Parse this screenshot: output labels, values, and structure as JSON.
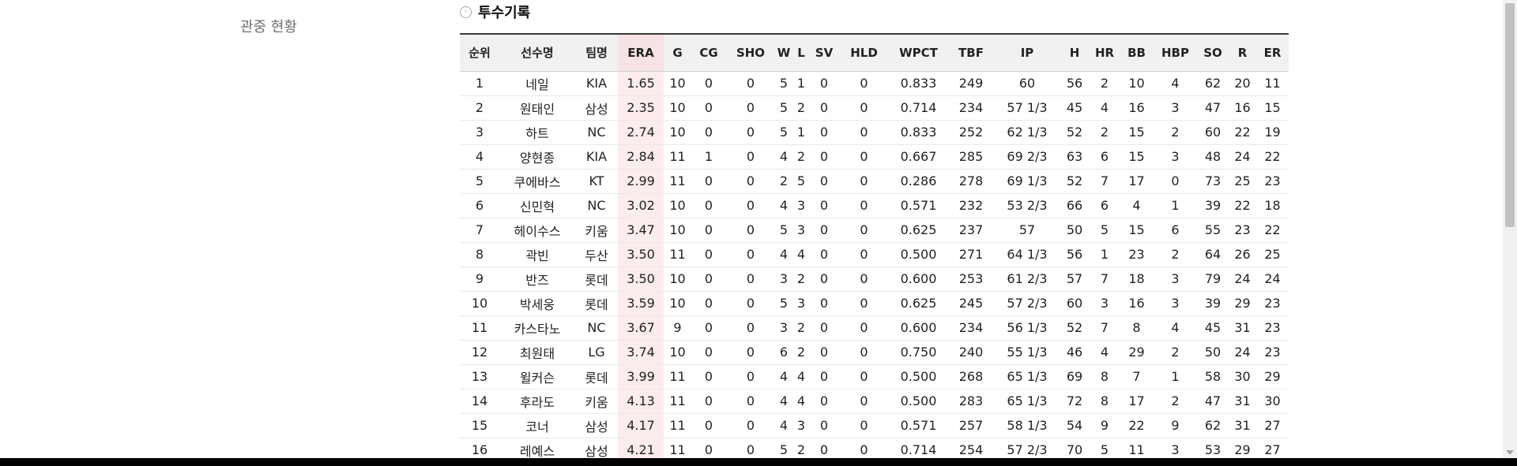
{
  "side_menu": {
    "attendance_label": "관중 현황"
  },
  "section": {
    "title": "투수기록",
    "icon": "circle-arrow-icon"
  },
  "table": {
    "headers": [
      "순위",
      "선수명",
      "팀명",
      "ERA",
      "G",
      "CG",
      "SHO",
      "W",
      "L",
      "SV",
      "HLD",
      "WPCT",
      "TBF",
      "IP",
      "H",
      "HR",
      "BB",
      "HBP",
      "SO",
      "R",
      "ER"
    ],
    "rows": [
      [
        "1",
        "네일",
        "KIA",
        "1.65",
        "10",
        "0",
        "0",
        "5",
        "1",
        "0",
        "0",
        "0.833",
        "249",
        "60",
        "56",
        "2",
        "10",
        "4",
        "62",
        "20",
        "11"
      ],
      [
        "2",
        "원태인",
        "삼성",
        "2.35",
        "10",
        "0",
        "0",
        "5",
        "2",
        "0",
        "0",
        "0.714",
        "234",
        "57 1/3",
        "45",
        "4",
        "16",
        "3",
        "47",
        "16",
        "15"
      ],
      [
        "3",
        "하트",
        "NC",
        "2.74",
        "10",
        "0",
        "0",
        "5",
        "1",
        "0",
        "0",
        "0.833",
        "252",
        "62 1/3",
        "52",
        "2",
        "15",
        "2",
        "60",
        "22",
        "19"
      ],
      [
        "4",
        "양현종",
        "KIA",
        "2.84",
        "11",
        "1",
        "0",
        "4",
        "2",
        "0",
        "0",
        "0.667",
        "285",
        "69 2/3",
        "63",
        "6",
        "15",
        "3",
        "48",
        "24",
        "22"
      ],
      [
        "5",
        "쿠에바스",
        "KT",
        "2.99",
        "11",
        "0",
        "0",
        "2",
        "5",
        "0",
        "0",
        "0.286",
        "278",
        "69 1/3",
        "52",
        "7",
        "17",
        "0",
        "73",
        "25",
        "23"
      ],
      [
        "6",
        "신민혁",
        "NC",
        "3.02",
        "10",
        "0",
        "0",
        "4",
        "3",
        "0",
        "0",
        "0.571",
        "232",
        "53 2/3",
        "66",
        "6",
        "4",
        "1",
        "39",
        "22",
        "18"
      ],
      [
        "7",
        "헤이수스",
        "키움",
        "3.47",
        "10",
        "0",
        "0",
        "5",
        "3",
        "0",
        "0",
        "0.625",
        "237",
        "57",
        "50",
        "5",
        "15",
        "6",
        "55",
        "23",
        "22"
      ],
      [
        "8",
        "곽빈",
        "두산",
        "3.50",
        "11",
        "0",
        "0",
        "4",
        "4",
        "0",
        "0",
        "0.500",
        "271",
        "64 1/3",
        "56",
        "1",
        "23",
        "2",
        "64",
        "26",
        "25"
      ],
      [
        "9",
        "반즈",
        "롯데",
        "3.50",
        "10",
        "0",
        "0",
        "3",
        "2",
        "0",
        "0",
        "0.600",
        "253",
        "61 2/3",
        "57",
        "7",
        "18",
        "3",
        "79",
        "24",
        "24"
      ],
      [
        "10",
        "박세웅",
        "롯데",
        "3.59",
        "10",
        "0",
        "0",
        "5",
        "3",
        "0",
        "0",
        "0.625",
        "245",
        "57 2/3",
        "60",
        "3",
        "16",
        "3",
        "39",
        "29",
        "23"
      ],
      [
        "11",
        "카스타노",
        "NC",
        "3.67",
        "9",
        "0",
        "0",
        "3",
        "2",
        "0",
        "0",
        "0.600",
        "234",
        "56 1/3",
        "52",
        "7",
        "8",
        "4",
        "45",
        "31",
        "23"
      ],
      [
        "12",
        "최원태",
        "LG",
        "3.74",
        "10",
        "0",
        "0",
        "6",
        "2",
        "0",
        "0",
        "0.750",
        "240",
        "55 1/3",
        "46",
        "4",
        "29",
        "2",
        "50",
        "24",
        "23"
      ],
      [
        "13",
        "윌커슨",
        "롯데",
        "3.99",
        "11",
        "0",
        "0",
        "4",
        "4",
        "0",
        "0",
        "0.500",
        "268",
        "65 1/3",
        "69",
        "8",
        "7",
        "1",
        "58",
        "30",
        "29"
      ],
      [
        "14",
        "후라도",
        "키움",
        "4.13",
        "11",
        "0",
        "0",
        "4",
        "4",
        "0",
        "0",
        "0.500",
        "283",
        "65 1/3",
        "72",
        "8",
        "17",
        "2",
        "47",
        "31",
        "30"
      ],
      [
        "15",
        "코너",
        "삼성",
        "4.17",
        "11",
        "0",
        "0",
        "4",
        "3",
        "0",
        "0",
        "0.571",
        "257",
        "58 1/3",
        "54",
        "9",
        "22",
        "9",
        "62",
        "31",
        "27"
      ],
      [
        "16",
        "레예스",
        "삼성",
        "4.21",
        "11",
        "0",
        "0",
        "5",
        "2",
        "0",
        "0",
        "0.714",
        "254",
        "57 2/3",
        "70",
        "5",
        "11",
        "3",
        "53",
        "29",
        "27"
      ]
    ]
  },
  "colors": {
    "era_highlight": "#fdecee",
    "header_bg": "#f1f1f1",
    "header_border": "#3a3a3a"
  }
}
